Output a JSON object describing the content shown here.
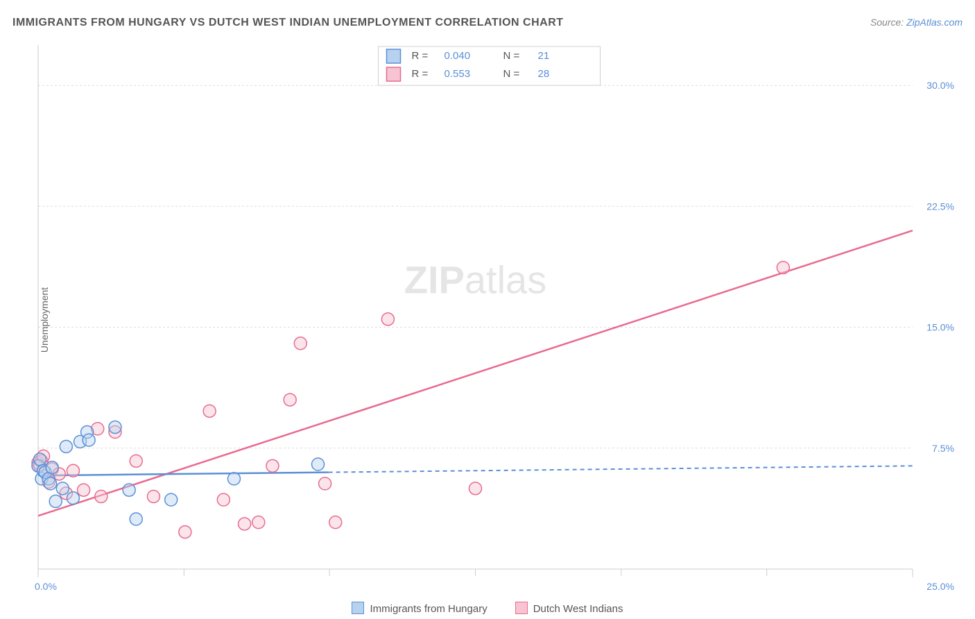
{
  "title": "IMMIGRANTS FROM HUNGARY VS DUTCH WEST INDIAN UNEMPLOYMENT CORRELATION CHART",
  "source_prefix": "Source: ",
  "source_site": "ZipAtlas.com",
  "y_axis_label": "Unemployment",
  "watermark_bold": "ZIP",
  "watermark_rest": "atlas",
  "colors": {
    "series_a_fill": "#b7d2ef",
    "series_a_stroke": "#5a8fd6",
    "series_b_fill": "#f7c5d1",
    "series_b_stroke": "#e86a8f",
    "grid": "#dddddd",
    "axis": "#cccccc",
    "tick_text": "#5a8fd6",
    "title_text": "#555555",
    "background": "#ffffff",
    "watermark": "#d0d0d0"
  },
  "legend_top": {
    "rows": [
      {
        "swatch": "a",
        "r_label": "R =",
        "r_val": "0.040",
        "n_label": "N =",
        "n_val": "21"
      },
      {
        "swatch": "b",
        "r_label": "R =",
        "r_val": "0.553",
        "n_label": "N =",
        "n_val": "28"
      }
    ]
  },
  "legend_bottom": [
    {
      "swatch": "a",
      "label": "Immigrants from Hungary"
    },
    {
      "swatch": "b",
      "label": "Dutch West Indians"
    }
  ],
  "chart": {
    "type": "scatter",
    "xlim": [
      0,
      25
    ],
    "ylim": [
      0,
      32.5
    ],
    "x_ticks": [
      0.0,
      25.0
    ],
    "x_tick_labels": [
      "0.0%",
      "25.0%"
    ],
    "x_minor_ticks": [
      4.17,
      8.33,
      12.5,
      16.67,
      20.83
    ],
    "y_ticks": [
      7.5,
      15.0,
      22.5,
      30.0
    ],
    "y_tick_labels": [
      "7.5%",
      "15.0%",
      "22.5%",
      "30.0%"
    ],
    "marker_radius": 9,
    "series": [
      {
        "id": "a",
        "name": "Immigrants from Hungary",
        "trend": {
          "x1": 0,
          "y1": 5.8,
          "x2": 8.3,
          "y2": 6.0,
          "extend_to_x": 25,
          "extend_y": 6.4
        },
        "points": [
          [
            0.0,
            6.4
          ],
          [
            0.05,
            6.8
          ],
          [
            0.1,
            5.6
          ],
          [
            0.15,
            6.1
          ],
          [
            0.2,
            6.0
          ],
          [
            0.3,
            5.6
          ],
          [
            0.35,
            5.3
          ],
          [
            0.4,
            6.3
          ],
          [
            0.5,
            4.2
          ],
          [
            0.7,
            5.0
          ],
          [
            0.8,
            7.6
          ],
          [
            1.0,
            4.4
          ],
          [
            1.2,
            7.9
          ],
          [
            1.4,
            8.5
          ],
          [
            1.45,
            8.0
          ],
          [
            2.2,
            8.8
          ],
          [
            2.6,
            4.9
          ],
          [
            2.8,
            3.1
          ],
          [
            3.8,
            4.3
          ],
          [
            5.6,
            5.6
          ],
          [
            8.0,
            6.5
          ]
        ]
      },
      {
        "id": "b",
        "name": "Dutch West Indians",
        "trend": {
          "x1": 0,
          "y1": 3.3,
          "x2": 25,
          "y2": 21.0
        },
        "points": [
          [
            0.0,
            6.6
          ],
          [
            0.05,
            6.4
          ],
          [
            0.1,
            6.7
          ],
          [
            0.15,
            7.0
          ],
          [
            0.3,
            5.4
          ],
          [
            0.4,
            6.2
          ],
          [
            0.6,
            5.9
          ],
          [
            0.8,
            4.7
          ],
          [
            1.0,
            6.1
          ],
          [
            1.3,
            4.9
          ],
          [
            1.7,
            8.7
          ],
          [
            1.8,
            4.5
          ],
          [
            2.2,
            8.5
          ],
          [
            2.8,
            6.7
          ],
          [
            3.3,
            4.5
          ],
          [
            4.2,
            2.3
          ],
          [
            4.9,
            9.8
          ],
          [
            5.3,
            4.3
          ],
          [
            5.9,
            2.8
          ],
          [
            6.3,
            2.9
          ],
          [
            6.7,
            6.4
          ],
          [
            7.2,
            10.5
          ],
          [
            7.5,
            14.0
          ],
          [
            8.2,
            5.3
          ],
          [
            8.5,
            2.9
          ],
          [
            10.0,
            15.5
          ],
          [
            12.5,
            5.0
          ],
          [
            21.3,
            18.7
          ]
        ]
      }
    ]
  }
}
